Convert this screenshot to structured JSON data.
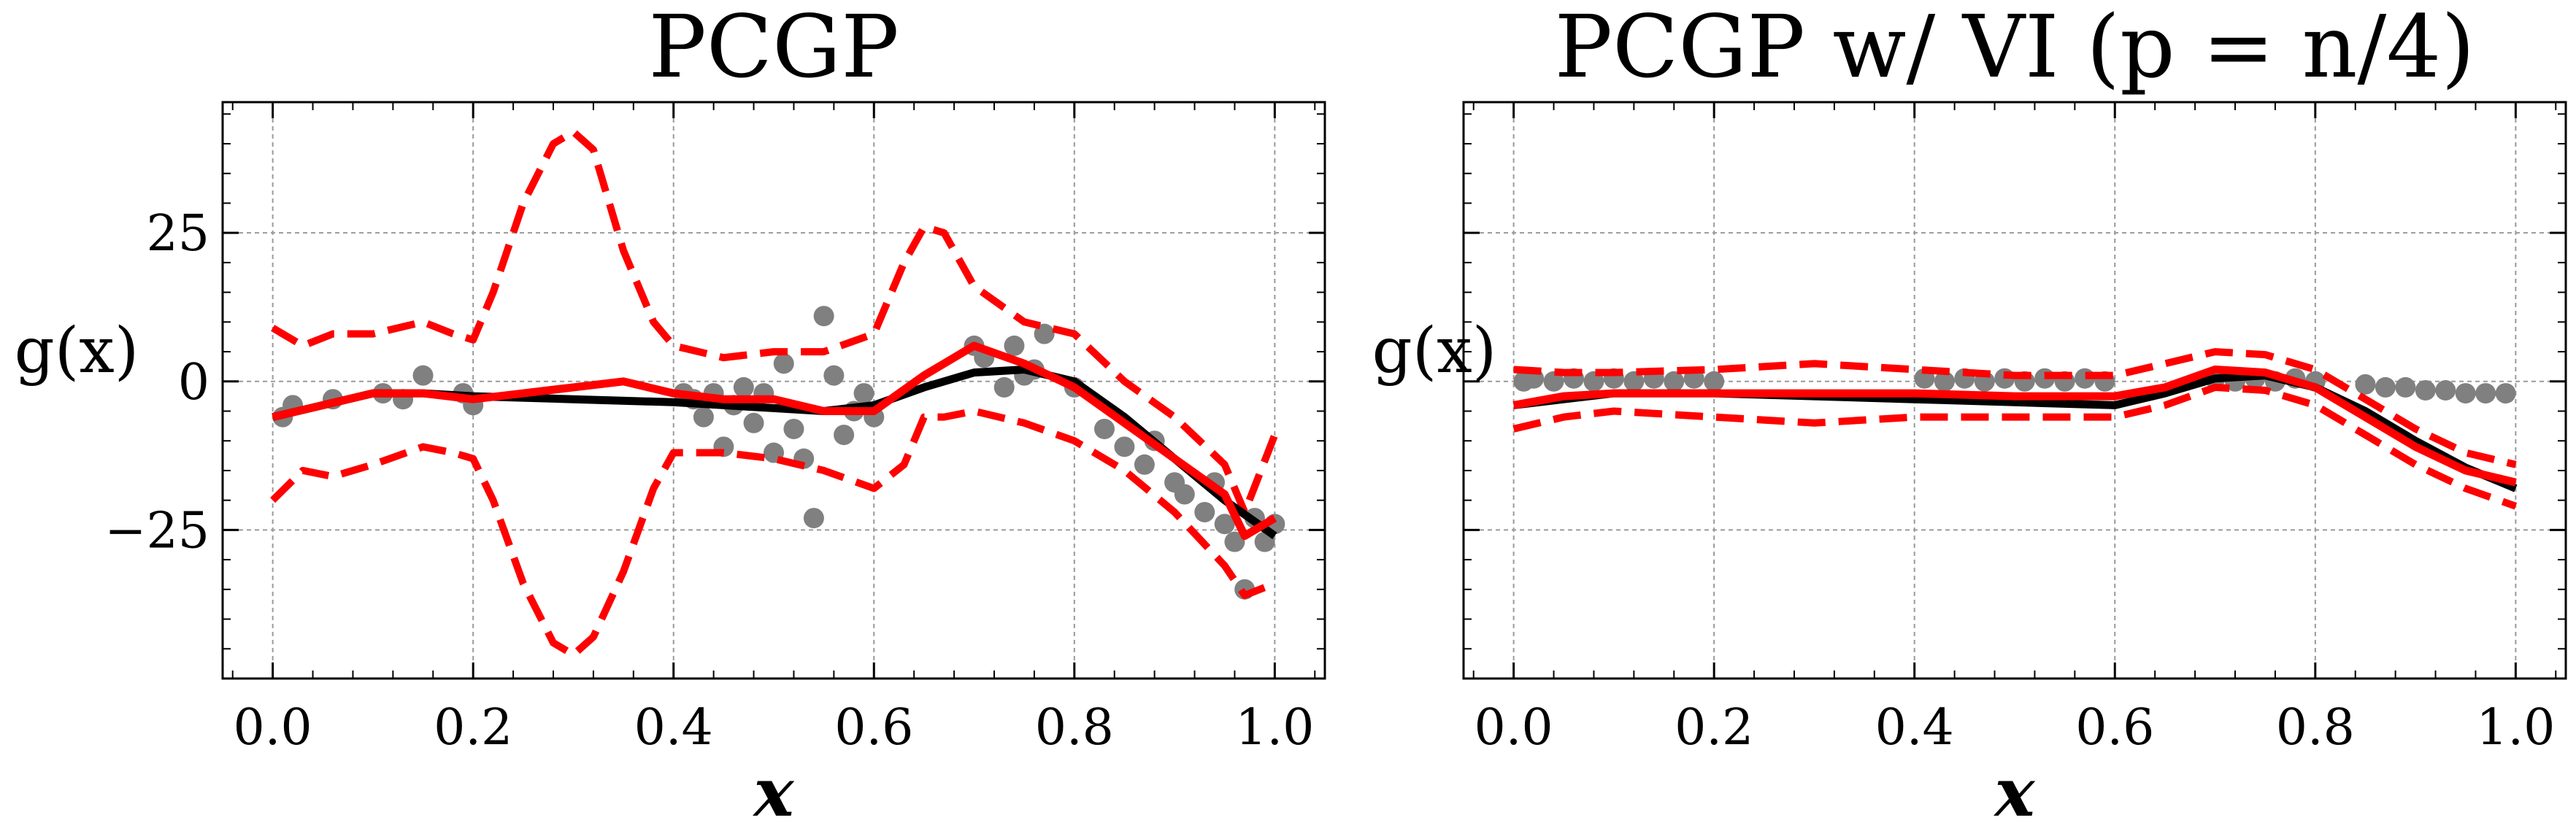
{
  "chart_data": [
    {
      "type": "scatter",
      "title": "PCGP",
      "xlabel": "x",
      "ylabel": "g(x)",
      "xlim": [
        -0.05,
        1.05
      ],
      "ylim": [
        -50,
        47
      ],
      "xticks": [
        0.0,
        0.2,
        0.4,
        0.6,
        0.8,
        1.0
      ],
      "xtick_labels": [
        "0.0",
        "0.2",
        "0.4",
        "0.6",
        "0.8",
        "1.0"
      ],
      "yticks": [
        25,
        0,
        -25
      ],
      "ytick_labels": [
        "25",
        "0",
        "−25"
      ],
      "grid": true,
      "series": [
        {
          "kind": "points",
          "color": "#808080",
          "x": [
            0.01,
            0.02,
            0.06,
            0.11,
            0.13,
            0.15,
            0.19,
            0.2,
            0.41,
            0.42,
            0.43,
            0.44,
            0.45,
            0.46,
            0.47,
            0.48,
            0.49,
            0.5,
            0.51,
            0.52,
            0.53,
            0.54,
            0.55,
            0.56,
            0.57,
            0.58,
            0.59,
            0.6,
            0.7,
            0.71,
            0.73,
            0.74,
            0.75,
            0.76,
            0.77,
            0.8,
            0.83,
            0.85,
            0.87,
            0.88,
            0.9,
            0.91,
            0.93,
            0.94,
            0.95,
            0.96,
            0.97,
            0.98,
            0.99,
            1.0
          ],
          "y": [
            -6,
            -4,
            -3,
            -2,
            -3,
            1,
            -2,
            -4,
            -2,
            -3,
            -6,
            -2,
            -11,
            -4,
            -1,
            -7,
            -2,
            -12,
            3,
            -8,
            -13,
            -23,
            11,
            1,
            -9,
            -5,
            -2,
            -6,
            6,
            4,
            -1,
            6,
            1,
            2,
            8,
            -1,
            -8,
            -11,
            -14,
            -10,
            -17,
            -19,
            -22,
            -17,
            -24,
            -27,
            -35,
            -23,
            -27,
            -24
          ]
        },
        {
          "kind": "line",
          "color": "#000000",
          "x": [
            0.0,
            0.05,
            0.1,
            0.15,
            0.2,
            0.3,
            0.4,
            0.5,
            0.55,
            0.6,
            0.65,
            0.7,
            0.75,
            0.8,
            0.85,
            0.9,
            0.95,
            1.0
          ],
          "y": [
            -6,
            -4,
            -2,
            -2,
            -2.5,
            -3,
            -3.5,
            -4.5,
            -5,
            -4,
            -1,
            1.5,
            2,
            0,
            -6,
            -13,
            -20,
            -26
          ]
        },
        {
          "kind": "line",
          "color": "#ff0000",
          "x": [
            0.0,
            0.05,
            0.1,
            0.15,
            0.2,
            0.25,
            0.3,
            0.35,
            0.4,
            0.45,
            0.5,
            0.55,
            0.6,
            0.65,
            0.7,
            0.75,
            0.8,
            0.85,
            0.9,
            0.95,
            0.97,
            1.0
          ],
          "y": [
            -6,
            -4,
            -2,
            -2,
            -3,
            -2,
            -1,
            0,
            -2,
            -3,
            -3,
            -5,
            -5,
            1,
            6,
            3,
            -1,
            -7,
            -13,
            -19,
            -26,
            -23
          ]
        },
        {
          "kind": "dashed",
          "color": "#ff0000",
          "x": [
            0.0,
            0.03,
            0.06,
            0.1,
            0.15,
            0.18,
            0.2,
            0.22,
            0.25,
            0.28,
            0.3,
            0.32,
            0.35,
            0.38,
            0.4,
            0.45,
            0.5,
            0.55,
            0.6,
            0.63,
            0.65,
            0.67,
            0.7,
            0.75,
            0.8,
            0.85,
            0.9,
            0.95,
            0.97,
            1.0
          ],
          "y": [
            9,
            6,
            8,
            8,
            10,
            8,
            7,
            15,
            30,
            40,
            42,
            39,
            22,
            10,
            6,
            4,
            5,
            5,
            8,
            20,
            26,
            25,
            16,
            10,
            8,
            0,
            -6,
            -14,
            -22,
            -9
          ]
        },
        {
          "kind": "dashed",
          "color": "#ff0000",
          "x": [
            0.0,
            0.03,
            0.06,
            0.1,
            0.15,
            0.18,
            0.2,
            0.22,
            0.25,
            0.28,
            0.3,
            0.32,
            0.35,
            0.38,
            0.4,
            0.45,
            0.5,
            0.55,
            0.6,
            0.63,
            0.65,
            0.67,
            0.7,
            0.75,
            0.8,
            0.85,
            0.9,
            0.95,
            0.97,
            1.0
          ],
          "y": [
            -20,
            -15,
            -16,
            -14,
            -11,
            -12,
            -13,
            -20,
            -34,
            -44,
            -46,
            -43,
            -32,
            -18,
            -12,
            -12,
            -13,
            -15,
            -18,
            -14,
            -6,
            -6,
            -5,
            -7,
            -10,
            -15,
            -22,
            -31,
            -36,
            -34
          ]
        }
      ]
    },
    {
      "type": "scatter",
      "title": "PCGP w/ VI (p = n/4)",
      "xlabel": "x",
      "ylabel": "g(x)",
      "xlim": [
        -0.05,
        1.05
      ],
      "ylim": [
        -50,
        47
      ],
      "xticks": [
        0.0,
        0.2,
        0.4,
        0.6,
        0.8,
        1.0
      ],
      "xtick_labels": [
        "0.0",
        "0.2",
        "0.4",
        "0.6",
        "0.8",
        "1.0"
      ],
      "grid": true,
      "series": [
        {
          "kind": "points",
          "color": "#808080",
          "x": [
            0.01,
            0.02,
            0.04,
            0.06,
            0.08,
            0.1,
            0.12,
            0.14,
            0.16,
            0.18,
            0.2,
            0.41,
            0.43,
            0.45,
            0.47,
            0.49,
            0.51,
            0.53,
            0.55,
            0.57,
            0.59,
            0.7,
            0.72,
            0.74,
            0.76,
            0.78,
            0.8,
            0.85,
            0.87,
            0.89,
            0.91,
            0.93,
            0.95,
            0.97,
            0.99
          ],
          "y": [
            0,
            0.5,
            0,
            0.5,
            0,
            0.5,
            0,
            0.5,
            0,
            0.5,
            0,
            0.5,
            0,
            0.5,
            0,
            0.5,
            0,
            0.5,
            0,
            0.5,
            0,
            0.5,
            0,
            0.5,
            0,
            0.5,
            0,
            -0.5,
            -1,
            -1,
            -1.5,
            -1.5,
            -2,
            -2,
            -2
          ]
        },
        {
          "kind": "line",
          "color": "#000000",
          "x": [
            0.0,
            0.05,
            0.1,
            0.2,
            0.3,
            0.4,
            0.5,
            0.6,
            0.65,
            0.7,
            0.75,
            0.8,
            0.85,
            0.9,
            0.95,
            1.0
          ],
          "y": [
            -4,
            -3,
            -2,
            -2,
            -2.5,
            -3,
            -3.5,
            -4,
            -2,
            0.5,
            1,
            -1,
            -5,
            -10,
            -14.5,
            -18
          ]
        },
        {
          "kind": "line",
          "color": "#ff0000",
          "x": [
            0.0,
            0.05,
            0.1,
            0.2,
            0.3,
            0.4,
            0.5,
            0.6,
            0.65,
            0.7,
            0.75,
            0.8,
            0.85,
            0.9,
            0.95,
            1.0
          ],
          "y": [
            -4,
            -2.5,
            -2,
            -2,
            -2,
            -2,
            -2.5,
            -2.5,
            -1,
            2,
            1.5,
            -1,
            -6,
            -11,
            -15,
            -17
          ]
        },
        {
          "kind": "dashed",
          "color": "#ff0000",
          "x": [
            0.0,
            0.05,
            0.1,
            0.2,
            0.3,
            0.4,
            0.5,
            0.6,
            0.65,
            0.7,
            0.75,
            0.8,
            0.85,
            0.9,
            0.95,
            1.0
          ],
          "y": [
            2,
            1.5,
            1.5,
            2,
            3,
            2,
            1,
            1,
            3,
            5,
            4.5,
            2,
            -3,
            -8,
            -12,
            -14
          ]
        },
        {
          "kind": "dashed",
          "color": "#ff0000",
          "x": [
            0.0,
            0.05,
            0.1,
            0.2,
            0.3,
            0.4,
            0.5,
            0.6,
            0.65,
            0.7,
            0.75,
            0.8,
            0.85,
            0.9,
            0.95,
            1.0
          ],
          "y": [
            -8,
            -6,
            -5,
            -6,
            -7,
            -6,
            -6,
            -6,
            -4,
            -1,
            -1.5,
            -4,
            -9,
            -14,
            -18,
            -21
          ]
        }
      ]
    }
  ]
}
